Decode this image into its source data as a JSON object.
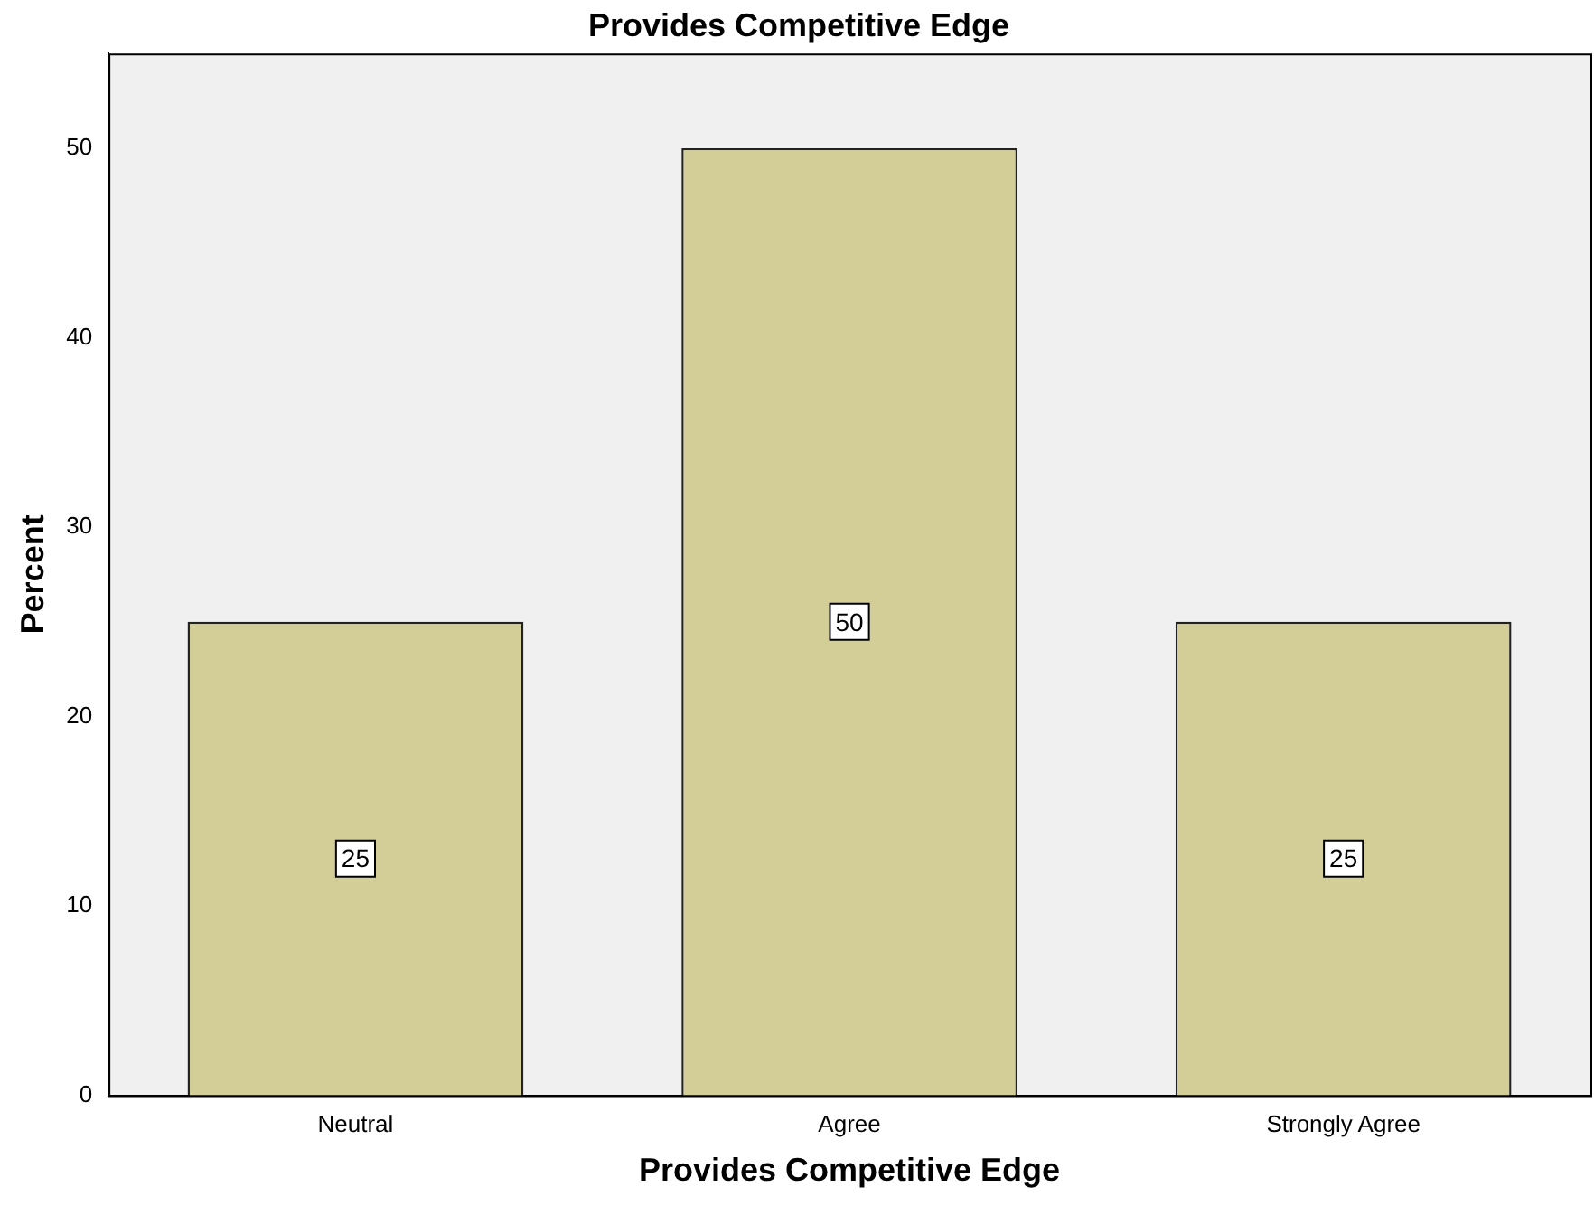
{
  "chart_data": {
    "type": "bar",
    "title": "Provides Competitive Edge",
    "xlabel": "Provides Competitive Edge",
    "ylabel": "Percent",
    "categories": [
      "Neutral",
      "Agree",
      "Strongly Agree"
    ],
    "values": [
      25,
      50,
      25
    ],
    "color": "#d3ce97",
    "ylim": [
      0,
      55
    ],
    "yticks": [
      0,
      10,
      20,
      30,
      40,
      50
    ],
    "grid": false,
    "legend": false,
    "data_labels": true
  }
}
